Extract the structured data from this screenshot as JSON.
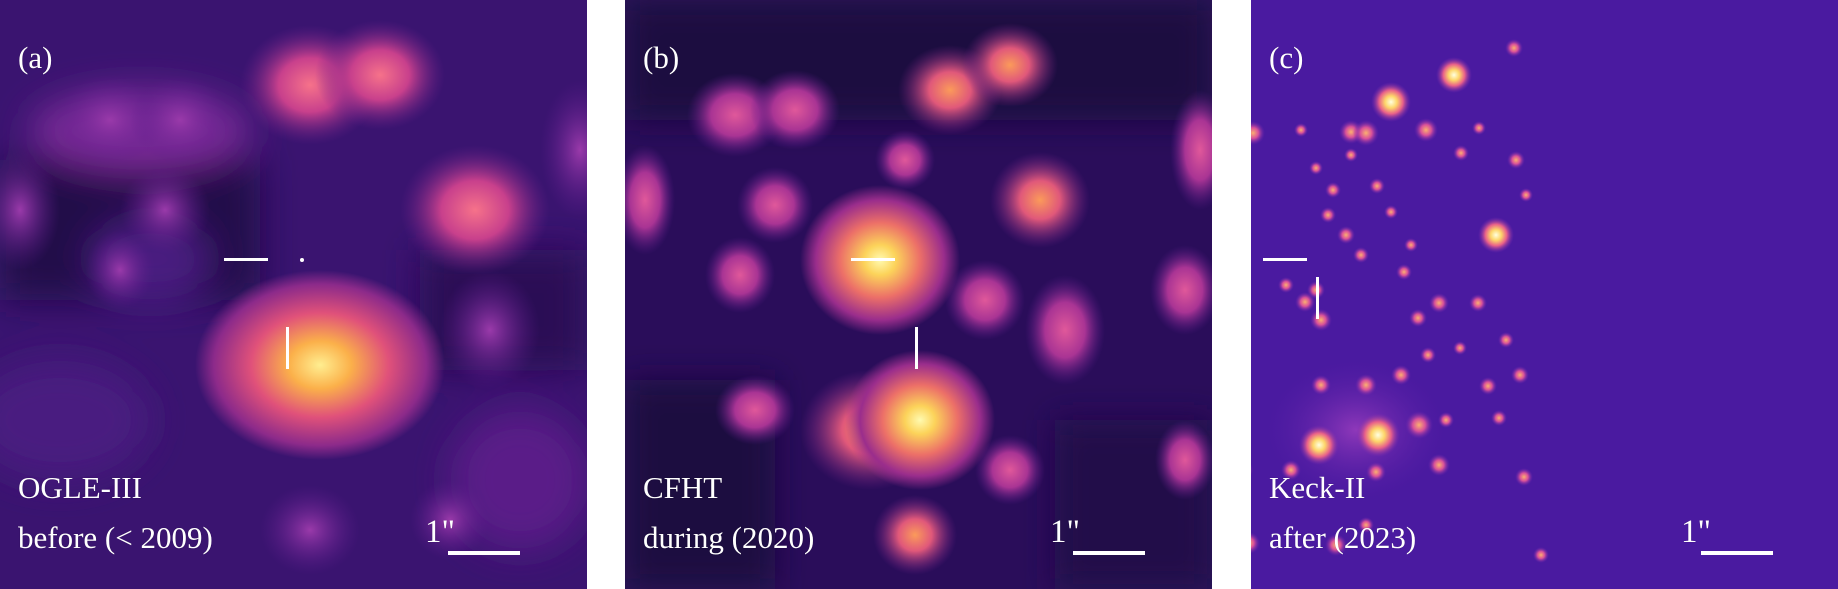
{
  "panels": [
    {
      "id": "a",
      "label": "(a)",
      "line1": "OGLE-III",
      "line2": "before (< 2009)",
      "scale": "1\""
    },
    {
      "id": "b",
      "label": "(b)",
      "line1": "CFHT",
      "line2": "during (2020)",
      "scale": "1\""
    },
    {
      "id": "c",
      "label": "(c)",
      "line1": "Keck-II",
      "line2": "after (2023)",
      "scale": "1\""
    }
  ],
  "colors": {
    "background_dark": "#2a0d5a",
    "colormap": [
      "#1a0830",
      "#3b0f70",
      "#8c2981",
      "#de4968",
      "#fe9f6d",
      "#fcfdbf"
    ]
  }
}
